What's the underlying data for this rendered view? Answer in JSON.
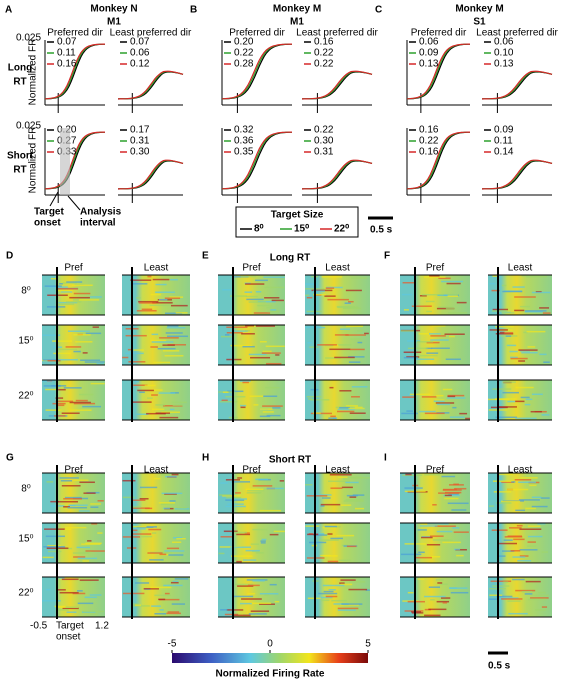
{
  "top_panels": [
    {
      "letter": "A",
      "title": "Monkey N",
      "subtitle": "M1",
      "columns": [
        "Preferred dir",
        "Least preferred dir"
      ],
      "long": [
        [
          "0.07",
          "0.11",
          "0.16"
        ],
        [
          "0.07",
          "0.06",
          "0.12"
        ]
      ],
      "short": [
        [
          "0.20",
          "0.27",
          "0.33"
        ],
        [
          "0.17",
          "0.31",
          "0.30"
        ]
      ]
    },
    {
      "letter": "B",
      "title": "Monkey M",
      "subtitle": "M1",
      "columns": [
        "Preferred dir",
        "Least preferred dir"
      ],
      "long": [
        [
          "0.20",
          "0.22",
          "0.28"
        ],
        [
          "0.16",
          "0.22",
          "0.22"
        ]
      ],
      "short": [
        [
          "0.32",
          "0.36",
          "0.35"
        ],
        [
          "0.22",
          "0.30",
          "0.31"
        ]
      ]
    },
    {
      "letter": "C",
      "title": "Monkey M",
      "subtitle": "S1",
      "columns": [
        "Preferred dir",
        "Least preferred dir"
      ],
      "long": [
        [
          "0.06",
          "0.09",
          "0.13"
        ],
        [
          "0.06",
          "0.10",
          "0.13"
        ]
      ],
      "short": [
        [
          "0.16",
          "0.22",
          "0.16"
        ],
        [
          "0.09",
          "0.11",
          "0.14"
        ]
      ]
    }
  ],
  "row_labels": [
    [
      "Long",
      "RT"
    ],
    [
      "Short",
      "RT"
    ]
  ],
  "y_axis_label": "Normalized FR",
  "y_max": "0.025",
  "annotations": {
    "target": [
      "Target",
      "onset"
    ],
    "analysis": [
      "Analysis",
      "interval"
    ]
  },
  "legend": {
    "title": "Target Size",
    "entries": [
      "8⁰",
      "15⁰",
      "22⁰"
    ],
    "colors": [
      "#000000",
      "#2ca02c",
      "#d62728"
    ]
  },
  "scale_bar": "0.5 s",
  "heatmap_sections": [
    {
      "title": "Long RT",
      "letters": [
        "D",
        "E",
        "F"
      ]
    },
    {
      "title": "Short RT",
      "letters": [
        "G",
        "H",
        "I"
      ]
    }
  ],
  "heatmap_columns": [
    "Pref",
    "Least"
  ],
  "heatmap_rows": [
    "8⁰",
    "15⁰",
    "22⁰"
  ],
  "heatmap_x_labels": {
    "start": "-0.5",
    "onset": [
      "Target",
      "onset"
    ],
    "end": "1.2"
  },
  "colorbar": {
    "ticks": [
      -5,
      0,
      5
    ],
    "label": "Normalized Firing Rate"
  }
}
